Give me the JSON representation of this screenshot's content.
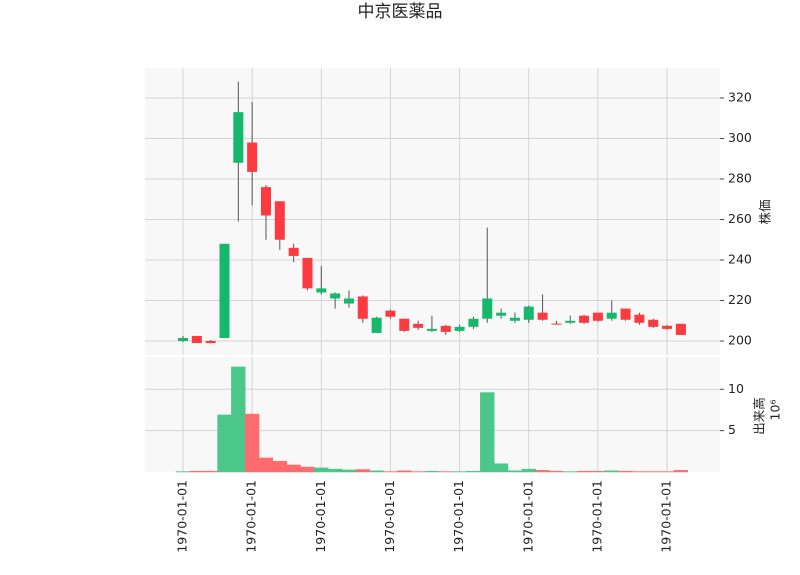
{
  "chart_data": {
    "type": "candlestick",
    "title": "中京医薬品",
    "categories": [
      "1970-01-01",
      null,
      null,
      null,
      null,
      "1970-01-01",
      null,
      null,
      null,
      null,
      "1970-01-01",
      null,
      null,
      null,
      null,
      "1970-01-01",
      null,
      null,
      null,
      null,
      "1970-01-01",
      null,
      null,
      null,
      null,
      "1970-01-01",
      null,
      null,
      null,
      null,
      "1970-01-01",
      null,
      null,
      null,
      null,
      "1970-01-01",
      null
    ],
    "open": [
      200,
      202.5,
      200,
      201.5,
      288,
      298,
      276,
      269,
      246,
      241,
      224,
      221,
      218.5,
      222,
      204,
      215,
      211,
      208.5,
      205,
      207.5,
      205,
      207,
      211,
      212.5,
      210,
      210.5,
      214,
      208.6,
      209,
      212.5,
      214,
      211,
      216,
      213,
      210.5,
      207.5,
      208.5
    ],
    "high": [
      202.5,
      202.5,
      200.5,
      248,
      328,
      318,
      277,
      269,
      248,
      241,
      237,
      224,
      225,
      222.5,
      212,
      215.5,
      211,
      210,
      212.5,
      208,
      208,
      212,
      256,
      216,
      214,
      217.5,
      223,
      210,
      212.5,
      213,
      214,
      220,
      216,
      214,
      211,
      208,
      208.5
    ],
    "low": [
      199.5,
      199,
      198.8,
      201.5,
      259,
      267,
      250,
      245,
      239,
      225,
      223,
      216,
      216.5,
      209,
      204,
      211,
      204.5,
      205.5,
      204.5,
      203,
      204.5,
      206,
      209,
      211,
      209,
      209,
      210,
      208,
      208.5,
      208.5,
      209.5,
      210,
      210,
      208,
      206.5,
      205.5,
      203
    ],
    "close": [
      201.5,
      199,
      199,
      248,
      313,
      283.5,
      262,
      250,
      242,
      226,
      226,
      223.5,
      221,
      211,
      211.5,
      212,
      205,
      206.5,
      206,
      204.5,
      207,
      211,
      221,
      214,
      211.5,
      217,
      210.5,
      208.2,
      210,
      209,
      210,
      214,
      210.5,
      209,
      207,
      206,
      203
    ],
    "up_color": "#16b86c",
    "down_color": "#fd3a3f",
    "ylabel": "株価",
    "ylim": [
      193.1,
      334.8
    ],
    "yticks": [
      200,
      220,
      240,
      260,
      280,
      300,
      320
    ],
    "grid": true,
    "volume": {
      "ylabel": "出来高",
      "offset_label": "10⁶",
      "values": [
        0.05,
        0.1,
        0.1,
        6.9,
        12.7,
        7.0,
        1.7,
        1.3,
        0.85,
        0.6,
        0.5,
        0.35,
        0.25,
        0.3,
        0.15,
        0.05,
        0.15,
        0.05,
        0.1,
        0.05,
        0.05,
        0.1,
        9.6,
        1.0,
        0.15,
        0.35,
        0.2,
        0.1,
        0.05,
        0.1,
        0.1,
        0.15,
        0.1,
        0.05,
        0.05,
        0.05,
        0.2
      ],
      "up_color": "#4cc78a",
      "down_color": "#ff6b6e",
      "ylim": [
        0,
        13.9
      ],
      "yticks": [
        5,
        10
      ]
    }
  }
}
